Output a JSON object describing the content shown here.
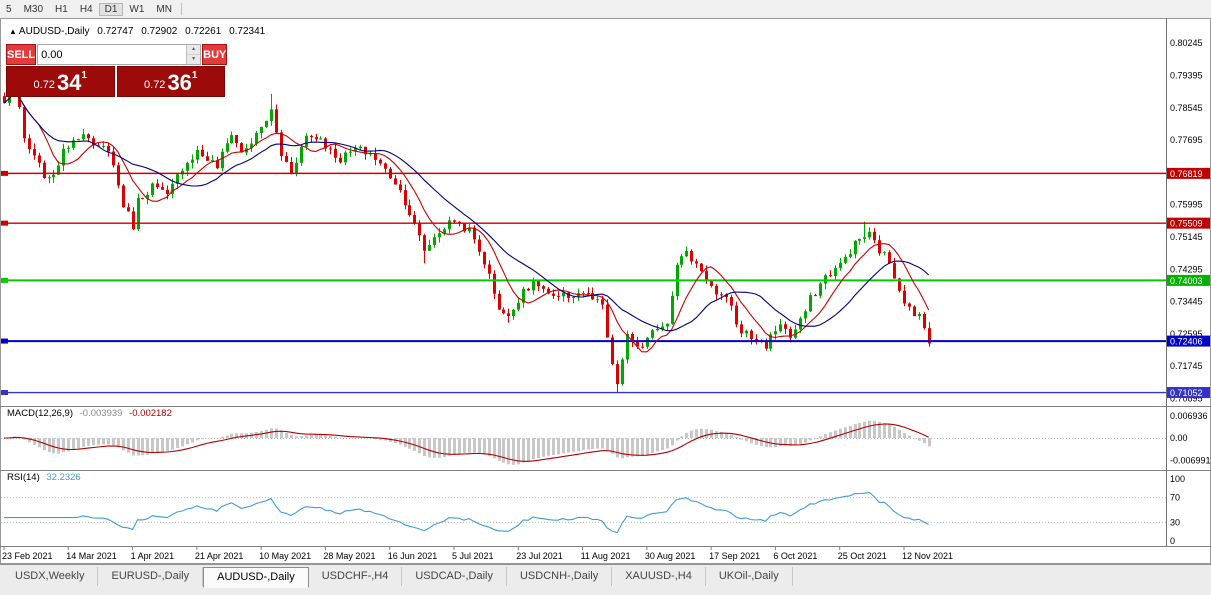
{
  "toolbar": {
    "timeframes": [
      {
        "label": "5",
        "active": false
      },
      {
        "label": "M30",
        "active": false
      },
      {
        "label": "H1",
        "active": false
      },
      {
        "label": "H4",
        "active": false
      },
      {
        "label": "D1",
        "active": true
      },
      {
        "label": "W1",
        "active": false
      },
      {
        "label": "MN",
        "active": false
      }
    ]
  },
  "symbol_info": {
    "arrow": "▲",
    "label": "AUDUSD-,Daily",
    "open": "0.72747",
    "high": "0.72902",
    "low": "0.72261",
    "close": "0.72341"
  },
  "trade_panel": {
    "sell_label": "SELL",
    "buy_label": "BUY",
    "lot_value": "0.00",
    "spin_up": "▲",
    "spin_down": "▼",
    "bid": {
      "base": "0.72",
      "big": "34",
      "sup": "1"
    },
    "ask": {
      "base": "0.72",
      "big": "36",
      "sup": "1"
    }
  },
  "price_axis": {
    "ticks": [
      {
        "label": "0.80245",
        "value": 0.80245
      },
      {
        "label": "0.79395",
        "value": 0.79395
      },
      {
        "label": "0.78545",
        "value": 0.78545
      },
      {
        "label": "0.77695",
        "value": 0.77695
      },
      {
        "label": "0.75995",
        "value": 0.75995
      },
      {
        "label": "0.75145",
        "value": 0.75145
      },
      {
        "label": "0.74295",
        "value": 0.74295
      },
      {
        "label": "0.73445",
        "value": 0.73445
      },
      {
        "label": "0.72595",
        "value": 0.72595
      },
      {
        "label": "0.71745",
        "value": 0.71745
      },
      {
        "label": "0.70895",
        "value": 0.70895
      }
    ],
    "badges": [
      {
        "label": "0.76819",
        "value": 0.76819,
        "color": "#c00000"
      },
      {
        "label": "0.75509",
        "value": 0.75509,
        "color": "#c00000"
      },
      {
        "label": "0.74003",
        "value": 0.74003,
        "color": "#00b300"
      },
      {
        "label": "0.72406",
        "value": 0.72406,
        "color": "#0000cc"
      },
      {
        "label": "0.71052",
        "value": 0.71052,
        "color": "#3333cc"
      }
    ]
  },
  "macd": {
    "label": "MACD(12,26,9)",
    "value_main": "-0.003939",
    "value_signal": "-0.002182",
    "axis_labels": [
      {
        "label": "0.006936",
        "value": 0.006936
      },
      {
        "label": "0.00",
        "value": 0
      },
      {
        "label": "-0.006991",
        "value": -0.006991
      }
    ]
  },
  "rsi": {
    "label": "RSI(14)",
    "value": "32.2326",
    "axis_labels": [
      {
        "label": "100",
        "value": 100
      },
      {
        "label": "70",
        "value": 70
      },
      {
        "label": "30",
        "value": 30
      },
      {
        "label": "0",
        "value": 0
      }
    ],
    "levels": [
      70,
      30
    ]
  },
  "date_axis": {
    "labels": [
      "23 Feb 2021",
      "14 Mar 2021",
      "1 Apr 2021",
      "21 Apr 2021",
      "10 May 2021",
      "28 May 2021",
      "16 Jun 2021",
      "5 Jul 2021",
      "23 Jul 2021",
      "11 Aug 2021",
      "30 Aug 2021",
      "17 Sep 2021",
      "6 Oct 2021",
      "25 Oct 2021",
      "12 Nov 2021"
    ],
    "candles_per_label": 13
  },
  "tabs": [
    {
      "label": "USDX,Weekly",
      "active": false
    },
    {
      "label": "EURUSD-,Daily",
      "active": false
    },
    {
      "label": "AUDUSD-,Daily",
      "active": true
    },
    {
      "label": "USDCHF-,H4",
      "active": false
    },
    {
      "label": "USDCAD-,Daily",
      "active": false
    },
    {
      "label": "USDCNH-,Daily",
      "active": false
    },
    {
      "label": "XAUUSD-,H4",
      "active": false
    },
    {
      "label": "UKOil-,Daily",
      "active": false
    }
  ],
  "chart_data": {
    "type": "candlestick",
    "symbol": "AUDUSD",
    "timeframe": "Daily",
    "visible_price_range": [
      0.705,
      0.8075
    ],
    "candle_count": 188,
    "current_ohlc": {
      "open": 0.72747,
      "high": 0.72902,
      "low": 0.72261,
      "close": 0.72341
    },
    "close_waypoints": [
      [
        0,
        0.7865
      ],
      [
        2,
        0.792
      ],
      [
        4,
        0.777
      ],
      [
        6,
        0.772
      ],
      [
        9,
        0.766
      ],
      [
        11,
        0.771
      ],
      [
        13,
        0.776
      ],
      [
        16,
        0.7795
      ],
      [
        18,
        0.7745
      ],
      [
        21,
        0.775
      ],
      [
        24,
        0.76
      ],
      [
        26,
        0.7545
      ],
      [
        27,
        0.761
      ],
      [
        30,
        0.765
      ],
      [
        33,
        0.762
      ],
      [
        36,
        0.77
      ],
      [
        39,
        0.774
      ],
      [
        41,
        0.772
      ],
      [
        43,
        0.77
      ],
      [
        46,
        0.779
      ],
      [
        48,
        0.7735
      ],
      [
        51,
        0.778
      ],
      [
        54,
        0.7845
      ],
      [
        56,
        0.773
      ],
      [
        58,
        0.769
      ],
      [
        61,
        0.778
      ],
      [
        64,
        0.7775
      ],
      [
        66,
        0.774
      ],
      [
        68,
        0.772
      ],
      [
        71,
        0.7745
      ],
      [
        74,
        0.7735
      ],
      [
        77,
        0.769
      ],
      [
        79,
        0.766
      ],
      [
        81,
        0.761
      ],
      [
        83,
        0.7545
      ],
      [
        85,
        0.748
      ],
      [
        88,
        0.753
      ],
      [
        91,
        0.756
      ],
      [
        94,
        0.753
      ],
      [
        97,
        0.745
      ],
      [
        100,
        0.733
      ],
      [
        102,
        0.73
      ],
      [
        105,
        0.738
      ],
      [
        108,
        0.739
      ],
      [
        111,
        0.735
      ],
      [
        114,
        0.736
      ],
      [
        117,
        0.737
      ],
      [
        119,
        0.735
      ],
      [
        121,
        0.733
      ],
      [
        123,
        0.717
      ],
      [
        124,
        0.713
      ],
      [
        126,
        0.725
      ],
      [
        129,
        0.722
      ],
      [
        132,
        0.728
      ],
      [
        134,
        0.729
      ],
      [
        136,
        0.745
      ],
      [
        138,
        0.747
      ],
      [
        141,
        0.743
      ],
      [
        144,
        0.736
      ],
      [
        147,
        0.734
      ],
      [
        148,
        0.728
      ],
      [
        151,
        0.725
      ],
      [
        154,
        0.723
      ],
      [
        157,
        0.729
      ],
      [
        159,
        0.725
      ],
      [
        161,
        0.729
      ],
      [
        163,
        0.735
      ],
      [
        166,
        0.741
      ],
      [
        169,
        0.744
      ],
      [
        171,
        0.748
      ],
      [
        173,
        0.751
      ],
      [
        175,
        0.752
      ],
      [
        177,
        0.748
      ],
      [
        179,
        0.745
      ],
      [
        181,
        0.738
      ],
      [
        182,
        0.735
      ],
      [
        184,
        0.73
      ],
      [
        185,
        0.731
      ],
      [
        186,
        0.7275
      ],
      [
        187,
        0.7234
      ]
    ],
    "wick_events": [
      {
        "i": 2,
        "high": 0.793
      },
      {
        "i": 26,
        "low": 0.7532
      },
      {
        "i": 54,
        "high": 0.7891
      },
      {
        "i": 85,
        "low": 0.7445
      },
      {
        "i": 102,
        "low": 0.7289
      },
      {
        "i": 124,
        "low": 0.7106
      },
      {
        "i": 174,
        "high": 0.7555
      }
    ],
    "horizontal_lines": [
      {
        "price": 0.76819,
        "color": "#cc0000",
        "width": 1.4
      },
      {
        "price": 0.75509,
        "color": "#cc0000",
        "width": 1.4
      },
      {
        "price": 0.74003,
        "color": "#00cc00",
        "width": 2
      },
      {
        "price": 0.72406,
        "color": "#0000cc",
        "width": 2
      },
      {
        "price": 0.71052,
        "color": "#3333cc",
        "width": 1.4
      }
    ],
    "moving_averages": [
      {
        "period": 8,
        "color": "#cc0000"
      },
      {
        "period": 18,
        "color": "#000080"
      }
    ],
    "indicators": {
      "macd": {
        "fast": 12,
        "slow": 26,
        "signal": 9,
        "current_main": -0.003939,
        "current_signal": -0.002182
      },
      "rsi": {
        "period": 14,
        "current": 32.2326
      }
    }
  },
  "colors": {
    "candle_up": "#00a800",
    "candle_down": "#dc0000",
    "macd_histogram": "#c8c8c8",
    "macd_signal": "#b30000",
    "rsi_line": "#3f9bd8"
  }
}
